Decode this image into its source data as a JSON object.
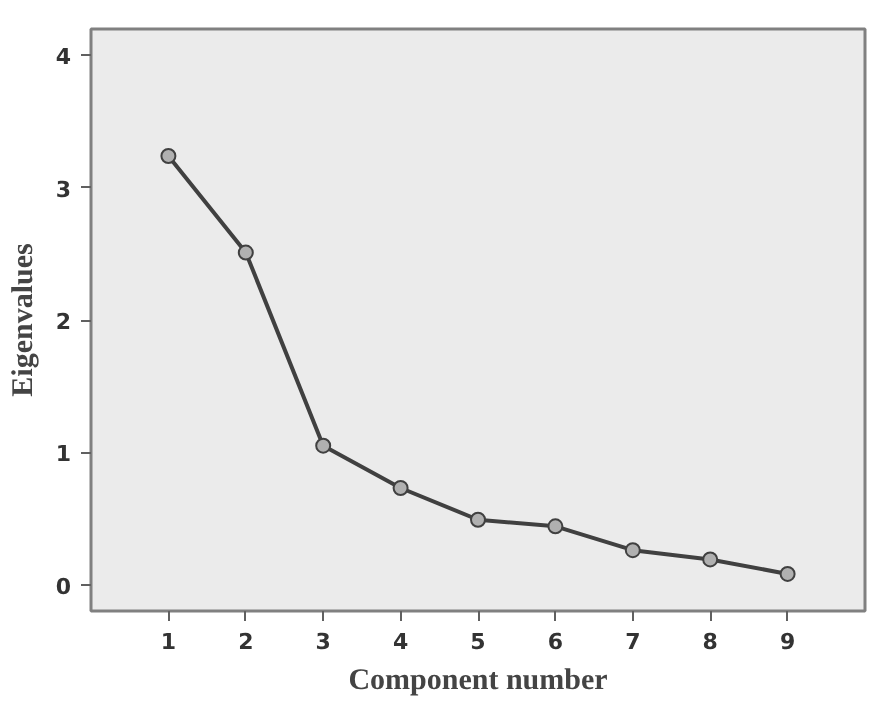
{
  "chart_data": {
    "type": "line",
    "xlabel": "Component number",
    "ylabel": "Eigenvalues",
    "x": [
      1,
      2,
      3,
      4,
      5,
      6,
      7,
      8,
      9
    ],
    "series": [
      {
        "color": "#404040",
        "values": [
          3.24,
          2.51,
          1.05,
          0.73,
          0.49,
          0.44,
          0.26,
          0.19,
          0.08
        ]
      }
    ],
    "xlim": [
      0,
      10
    ],
    "ylim": [
      -0.2,
      4.2
    ],
    "xticks": [
      1,
      2,
      3,
      4,
      5,
      6,
      7,
      8,
      9
    ],
    "yticks": [
      0,
      1,
      2,
      3,
      4
    ],
    "marker": "circle",
    "line_style": "solid"
  }
}
